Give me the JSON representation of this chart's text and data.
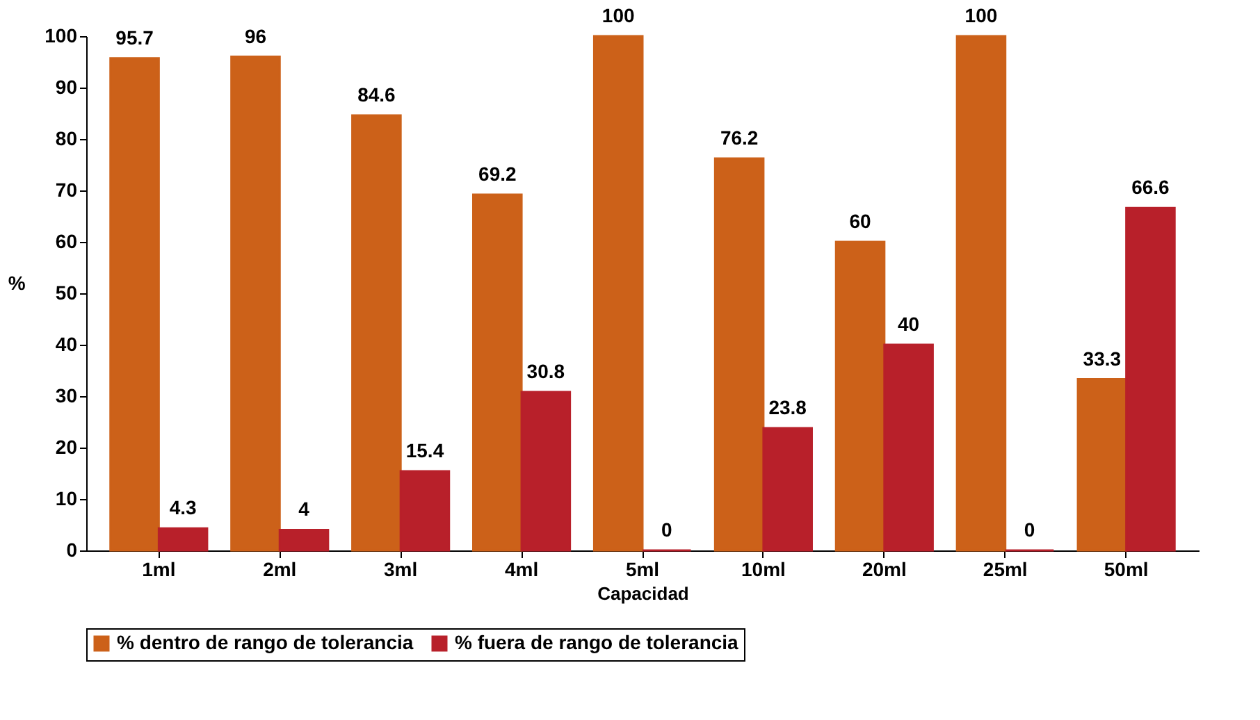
{
  "chart_data": {
    "type": "bar",
    "xlabel": "Capacidad",
    "ylabel": "%",
    "categories": [
      "1ml",
      "2ml",
      "3ml",
      "4ml",
      "5ml",
      "10ml",
      "20ml",
      "25ml",
      "50ml"
    ],
    "series": [
      {
        "name": "% dentro de rango de tolerancia",
        "color": "#cc6119",
        "values": [
          95.7,
          96,
          84.6,
          69.2,
          100,
          76.2,
          60,
          100,
          33.3
        ]
      },
      {
        "name": "% fuera de rango de tolerancia",
        "color": "#b8202a",
        "values": [
          4.3,
          4,
          15.4,
          30.8,
          0,
          23.8,
          40,
          0,
          66.6
        ]
      }
    ],
    "ylim": [
      0,
      100
    ],
    "yticks": [
      0,
      10,
      20,
      30,
      40,
      50,
      60,
      70,
      80,
      90,
      100
    ],
    "grid": false,
    "legend": "bottom",
    "data_labels": true
  }
}
